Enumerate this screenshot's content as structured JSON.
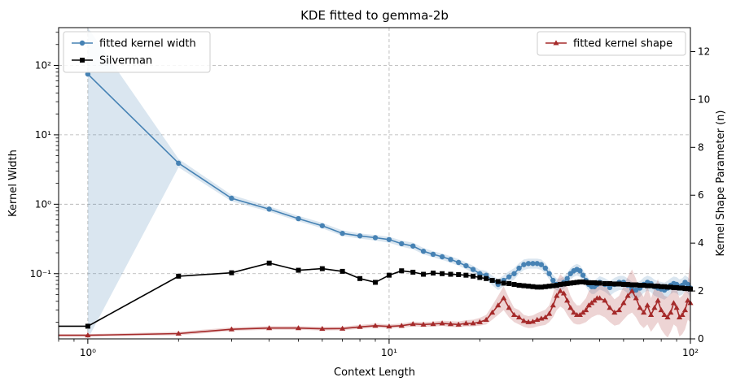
{
  "chart_data": {
    "type": "line",
    "title": "KDE fitted to gemma-2b",
    "xlabel": "Context Length",
    "ylabel_left": "Kernel Width",
    "ylabel_right": "Kernel Shape Parameter (n)",
    "xscale": "log",
    "yscale_left": "log",
    "xlim": [
      0.8,
      100
    ],
    "ylim_left": [
      0.0115,
      350
    ],
    "ylim_right": [
      0,
      13
    ],
    "x_ticks": [
      {
        "value": 1,
        "label": "10⁰"
      },
      {
        "value": 10,
        "label": "10¹"
      },
      {
        "value": 100,
        "label": "10²"
      }
    ],
    "y_left_ticks": [
      {
        "value": 0.1,
        "label": "10⁻¹"
      },
      {
        "value": 1,
        "label": "10⁰"
      },
      {
        "value": 10,
        "label": "10¹"
      },
      {
        "value": 100,
        "label": "10²"
      }
    ],
    "y_right_ticks": [
      0,
      2,
      4,
      6,
      8,
      10,
      12
    ],
    "grid": true,
    "series": [
      {
        "name": "fitted kernel width",
        "axis": "left",
        "color": "#4682b4",
        "marker": "circle",
        "x": [
          1,
          2,
          3,
          4,
          5,
          6,
          7,
          8,
          9,
          10,
          11,
          12,
          13,
          14,
          15,
          16,
          17,
          18,
          19,
          20,
          21,
          22,
          23,
          24,
          25,
          26,
          27,
          28,
          29,
          30,
          31,
          32,
          33,
          34,
          35,
          36,
          37,
          38,
          39,
          40,
          41,
          42,
          43,
          44,
          45,
          46,
          47,
          48,
          49,
          50,
          52,
          54,
          56,
          58,
          60,
          62,
          64,
          66,
          68,
          70,
          72,
          74,
          76,
          78,
          80,
          82,
          84,
          86,
          88,
          90,
          92,
          94,
          96,
          98,
          100
        ],
        "y": [
          75,
          3.9,
          1.22,
          0.85,
          0.62,
          0.49,
          0.38,
          0.35,
          0.33,
          0.31,
          0.27,
          0.25,
          0.21,
          0.19,
          0.175,
          0.16,
          0.145,
          0.13,
          0.115,
          0.1,
          0.095,
          0.08,
          0.07,
          0.08,
          0.09,
          0.1,
          0.12,
          0.135,
          0.14,
          0.14,
          0.14,
          0.135,
          0.12,
          0.1,
          0.08,
          0.07,
          0.07,
          0.075,
          0.085,
          0.1,
          0.11,
          0.115,
          0.11,
          0.095,
          0.08,
          0.07,
          0.065,
          0.065,
          0.07,
          0.075,
          0.07,
          0.063,
          0.07,
          0.075,
          0.075,
          0.068,
          0.06,
          0.058,
          0.062,
          0.07,
          0.075,
          0.072,
          0.065,
          0.062,
          0.06,
          0.058,
          0.062,
          0.068,
          0.072,
          0.07,
          0.065,
          0.068,
          0.075,
          0.07,
          0.062
        ],
        "band_lower": [
          0.0115,
          3.4,
          1.1,
          0.78,
          0.57,
          0.45,
          0.35,
          0.32,
          0.3,
          0.28,
          0.245,
          0.225,
          0.19,
          0.172,
          0.158,
          0.144,
          0.13,
          0.116,
          0.102,
          0.088,
          0.082,
          0.068,
          0.058,
          0.066,
          0.074,
          0.082,
          0.1,
          0.113,
          0.118,
          0.118,
          0.118,
          0.113,
          0.1,
          0.083,
          0.066,
          0.057,
          0.057,
          0.061,
          0.069,
          0.082,
          0.09,
          0.094,
          0.09,
          0.077,
          0.065,
          0.056,
          0.051,
          0.051,
          0.055,
          0.059,
          0.055,
          0.048,
          0.054,
          0.058,
          0.058,
          0.052,
          0.045,
          0.043,
          0.046,
          0.053,
          0.057,
          0.054,
          0.048,
          0.046,
          0.044,
          0.042,
          0.046,
          0.051,
          0.054,
          0.052,
          0.048,
          0.05,
          0.056,
          0.052,
          0.045
        ],
        "band_upper": [
          350,
          4.5,
          1.36,
          0.93,
          0.68,
          0.54,
          0.42,
          0.38,
          0.36,
          0.34,
          0.3,
          0.28,
          0.235,
          0.21,
          0.195,
          0.178,
          0.162,
          0.146,
          0.13,
          0.114,
          0.11,
          0.094,
          0.083,
          0.095,
          0.108,
          0.12,
          0.142,
          0.16,
          0.165,
          0.165,
          0.165,
          0.16,
          0.142,
          0.12,
          0.096,
          0.085,
          0.085,
          0.091,
          0.103,
          0.12,
          0.132,
          0.138,
          0.132,
          0.114,
          0.096,
          0.085,
          0.08,
          0.08,
          0.086,
          0.092,
          0.086,
          0.078,
          0.087,
          0.093,
          0.093,
          0.085,
          0.076,
          0.073,
          0.078,
          0.088,
          0.094,
          0.09,
          0.082,
          0.078,
          0.076,
          0.074,
          0.079,
          0.086,
          0.091,
          0.089,
          0.083,
          0.086,
          0.095,
          0.089,
          0.08
        ]
      },
      {
        "name": "Silverman",
        "axis": "left",
        "color": "#000000",
        "marker": "square",
        "x": [
          0.8,
          1,
          2,
          3,
          4,
          5,
          6,
          7,
          8,
          9,
          10,
          11,
          12,
          13,
          14,
          15,
          16,
          17,
          18,
          19,
          20,
          21,
          22,
          23,
          24,
          25,
          26,
          27,
          28,
          29,
          30,
          31,
          32,
          33,
          34,
          35,
          36,
          37,
          38,
          39,
          40,
          41,
          42,
          43,
          44,
          45,
          46,
          47,
          48,
          49,
          50,
          52,
          54,
          56,
          58,
          60,
          62,
          64,
          66,
          68,
          70,
          72,
          74,
          76,
          78,
          80,
          82,
          84,
          86,
          88,
          90,
          92,
          94,
          96,
          98,
          100
        ],
        "y": [
          0.0175,
          0.0175,
          0.092,
          0.103,
          0.142,
          0.112,
          0.118,
          0.108,
          0.085,
          0.075,
          0.095,
          0.11,
          0.105,
          0.098,
          0.102,
          0.1,
          0.098,
          0.097,
          0.095,
          0.092,
          0.088,
          0.085,
          0.08,
          0.077,
          0.073,
          0.072,
          0.07,
          0.068,
          0.067,
          0.066,
          0.065,
          0.064,
          0.064,
          0.065,
          0.066,
          0.067,
          0.068,
          0.07,
          0.071,
          0.072,
          0.073,
          0.074,
          0.075,
          0.076,
          0.076,
          0.075,
          0.074,
          0.074,
          0.074,
          0.073,
          0.073,
          0.072,
          0.072,
          0.071,
          0.071,
          0.07,
          0.07,
          0.069,
          0.069,
          0.068,
          0.068,
          0.067,
          0.067,
          0.066,
          0.066,
          0.065,
          0.065,
          0.064,
          0.064,
          0.063,
          0.063,
          0.062,
          0.062,
          0.061,
          0.061,
          0.06
        ]
      },
      {
        "name": "fitted kernel shape",
        "axis": "right",
        "color": "#a52a2a",
        "marker": "triangle",
        "x": [
          0.8,
          1,
          2,
          3,
          4,
          5,
          6,
          7,
          8,
          9,
          10,
          11,
          12,
          13,
          14,
          15,
          16,
          17,
          18,
          19,
          20,
          21,
          22,
          23,
          24,
          25,
          26,
          27,
          28,
          29,
          30,
          31,
          32,
          33,
          34,
          35,
          36,
          37,
          38,
          39,
          40,
          41,
          42,
          43,
          44,
          45,
          46,
          47,
          48,
          49,
          50,
          52,
          54,
          56,
          58,
          60,
          62,
          64,
          66,
          68,
          70,
          72,
          74,
          76,
          78,
          80,
          82,
          84,
          86,
          88,
          90,
          92,
          94,
          96,
          98,
          100
        ],
        "y": [
          0.15,
          0.15,
          0.22,
          0.4,
          0.45,
          0.45,
          0.42,
          0.43,
          0.5,
          0.55,
          0.52,
          0.55,
          0.62,
          0.6,
          0.62,
          0.65,
          0.62,
          0.6,
          0.65,
          0.65,
          0.7,
          0.8,
          1.1,
          1.4,
          1.7,
          1.3,
          1.0,
          0.9,
          0.75,
          0.7,
          0.72,
          0.8,
          0.85,
          0.9,
          1.05,
          1.4,
          1.8,
          2.0,
          1.9,
          1.6,
          1.3,
          1.1,
          1.0,
          1.0,
          1.1,
          1.2,
          1.4,
          1.5,
          1.6,
          1.7,
          1.7,
          1.6,
          1.3,
          1.1,
          1.2,
          1.5,
          1.8,
          2.0,
          1.7,
          1.3,
          1.1,
          1.4,
          1.0,
          1.3,
          1.6,
          1.2,
          1.0,
          0.9,
          1.1,
          1.5,
          1.3,
          0.9,
          1.0,
          1.2,
          1.6,
          1.5
        ],
        "band_lower": [
          0.1,
          0.1,
          0.15,
          0.33,
          0.38,
          0.38,
          0.35,
          0.36,
          0.42,
          0.46,
          0.44,
          0.46,
          0.52,
          0.5,
          0.52,
          0.54,
          0.5,
          0.48,
          0.52,
          0.52,
          0.55,
          0.6,
          0.8,
          1.0,
          1.2,
          0.9,
          0.7,
          0.6,
          0.5,
          0.45,
          0.46,
          0.52,
          0.55,
          0.58,
          0.7,
          0.9,
          1.2,
          1.35,
          1.25,
          1.0,
          0.8,
          0.65,
          0.6,
          0.6,
          0.65,
          0.7,
          0.8,
          0.9,
          0.95,
          1.0,
          1.0,
          0.9,
          0.7,
          0.55,
          0.6,
          0.8,
          1.0,
          1.1,
          0.9,
          0.6,
          0.45,
          0.6,
          0.3,
          0.5,
          0.7,
          0.4,
          0.2,
          0.05,
          0.3,
          0.6,
          0.5,
          0.1,
          0.2,
          0.4,
          0.8,
          0.7
        ],
        "band_upper": [
          0.2,
          0.2,
          0.3,
          0.48,
          0.53,
          0.53,
          0.5,
          0.51,
          0.58,
          0.64,
          0.6,
          0.64,
          0.72,
          0.7,
          0.72,
          0.76,
          0.74,
          0.72,
          0.78,
          0.8,
          0.88,
          1.0,
          1.4,
          1.8,
          2.2,
          1.7,
          1.3,
          1.2,
          1.0,
          0.95,
          0.98,
          1.08,
          1.15,
          1.22,
          1.4,
          1.9,
          2.4,
          2.7,
          2.55,
          2.2,
          1.8,
          1.55,
          1.4,
          1.4,
          1.55,
          1.7,
          2.0,
          2.1,
          2.25,
          2.4,
          2.4,
          2.3,
          1.9,
          1.65,
          1.8,
          2.2,
          2.6,
          2.9,
          2.5,
          2.0,
          1.75,
          2.2,
          1.7,
          2.1,
          2.5,
          2.0,
          1.8,
          1.75,
          1.9,
          2.4,
          2.1,
          1.7,
          1.8,
          2.0,
          2.4,
          3.3
        ]
      }
    ],
    "legends": [
      {
        "placement": "upper-left",
        "entries": [
          "fitted kernel width",
          "Silverman"
        ]
      },
      {
        "placement": "upper-right",
        "entries": [
          "fitted kernel shape"
        ]
      }
    ]
  }
}
